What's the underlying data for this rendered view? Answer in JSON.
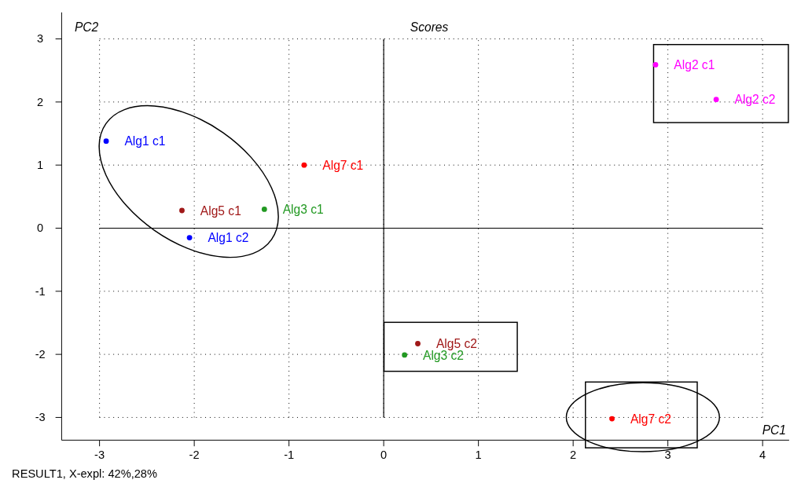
{
  "chart_data": {
    "type": "scatter",
    "title": "Scores",
    "xlabel": "PC1",
    "ylabel": "PC2",
    "xlim": [
      -3.4,
      4.28
    ],
    "ylim": [
      -3.36,
      3.42
    ],
    "xticks": [
      -3,
      -2,
      -1,
      0,
      1,
      2,
      3,
      4
    ],
    "yticks": [
      -3,
      -2,
      -1,
      0,
      1,
      2,
      3
    ],
    "grid": true,
    "marker": "circle",
    "series": [
      {
        "color": "#0000ff",
        "x": [
          -2.93,
          -2.05
        ],
        "values": [
          1.38,
          -0.15
        ]
      },
      {
        "color": "#ff00ff",
        "x": [
          2.87,
          3.51
        ],
        "values": [
          2.59,
          2.04
        ]
      },
      {
        "color": "#ff0000",
        "x": [
          -0.84,
          2.41
        ],
        "values": [
          1.0,
          -3.02
        ]
      },
      {
        "color": "#a01818",
        "x": [
          -2.13,
          0.36
        ],
        "values": [
          0.28,
          -1.83
        ]
      },
      {
        "color": "#229922",
        "x": [
          -1.26,
          0.22
        ],
        "values": [
          0.3,
          -2.01
        ]
      }
    ],
    "annotations": [
      {
        "text": "Alg1 c1",
        "x": -2.93,
        "y": 1.38
      },
      {
        "text": "Alg1 c2",
        "x": -2.05,
        "y": -0.15
      },
      {
        "text": "Alg2 c1",
        "x": 2.87,
        "y": 2.59
      },
      {
        "text": "Alg2 c2",
        "x": 3.51,
        "y": 2.04
      },
      {
        "text": "Alg7 c1",
        "x": -0.84,
        "y": 1.0
      },
      {
        "text": "Alg7 c2",
        "x": 2.41,
        "y": -3.02
      },
      {
        "text": "Alg5 c1",
        "x": -2.13,
        "y": 0.28
      },
      {
        "text": "Alg5 c2",
        "x": 0.36,
        "y": -1.83
      },
      {
        "text": "Alg3 c1",
        "x": -1.26,
        "y": 0.3
      },
      {
        "text": "Alg3 c2",
        "x": 0.22,
        "y": -2.01
      },
      "RESULT1, X-expl: 42%,28%"
    ]
  }
}
